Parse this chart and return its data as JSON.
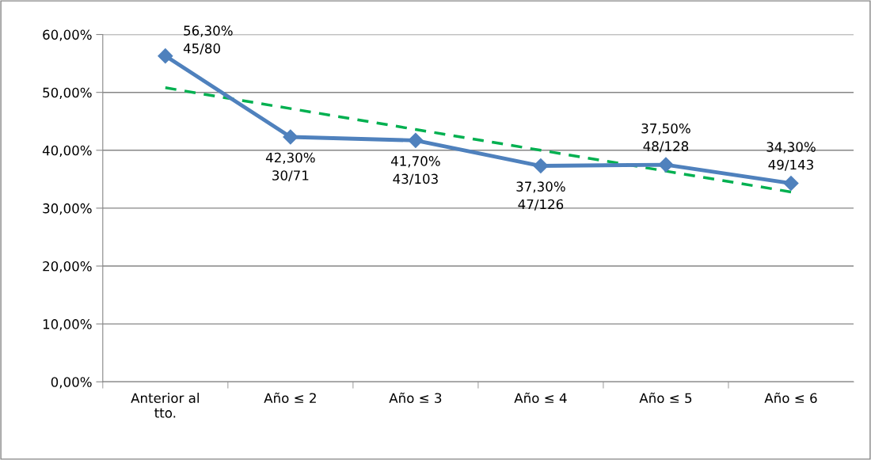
{
  "chart_data": {
    "type": "line",
    "categories": [
      "Anterior al\ntto.",
      "Año ≤ 2",
      "Año ≤ 3",
      "Año ≤ 4",
      "Año ≤ 5",
      "Año ≤ 6"
    ],
    "series": [
      {
        "color": "#4f81bd",
        "values": [
          56.3,
          42.3,
          41.7,
          37.3,
          37.5,
          34.3
        ],
        "marker": "diamond",
        "line_style": "solid",
        "value_labels": [
          "56,30%\n45/80",
          "42,30%\n30/71",
          "41,70%\n43/103",
          "37,30%\n47/126",
          "37,50%\n48/128",
          "34,30%\n49/143"
        ]
      },
      {
        "type": "line",
        "color": "#00b050",
        "values": [
          50.8,
          47.2,
          43.6,
          40.0,
          36.4,
          32.8
        ],
        "marker": "none",
        "line_style": "dashed"
      }
    ],
    "ylim": [
      0,
      60
    ],
    "yticks": [
      {
        "value": 0,
        "label": "0,00%"
      },
      {
        "value": 10,
        "label": "10,00%"
      },
      {
        "value": 20,
        "label": "20,00%"
      },
      {
        "value": 30,
        "label": "30,00%"
      },
      {
        "value": 40,
        "label": "40,00%"
      },
      {
        "value": 50,
        "label": "50,00%"
      },
      {
        "value": 60,
        "label": "60,00%"
      }
    ],
    "grid": "y"
  }
}
